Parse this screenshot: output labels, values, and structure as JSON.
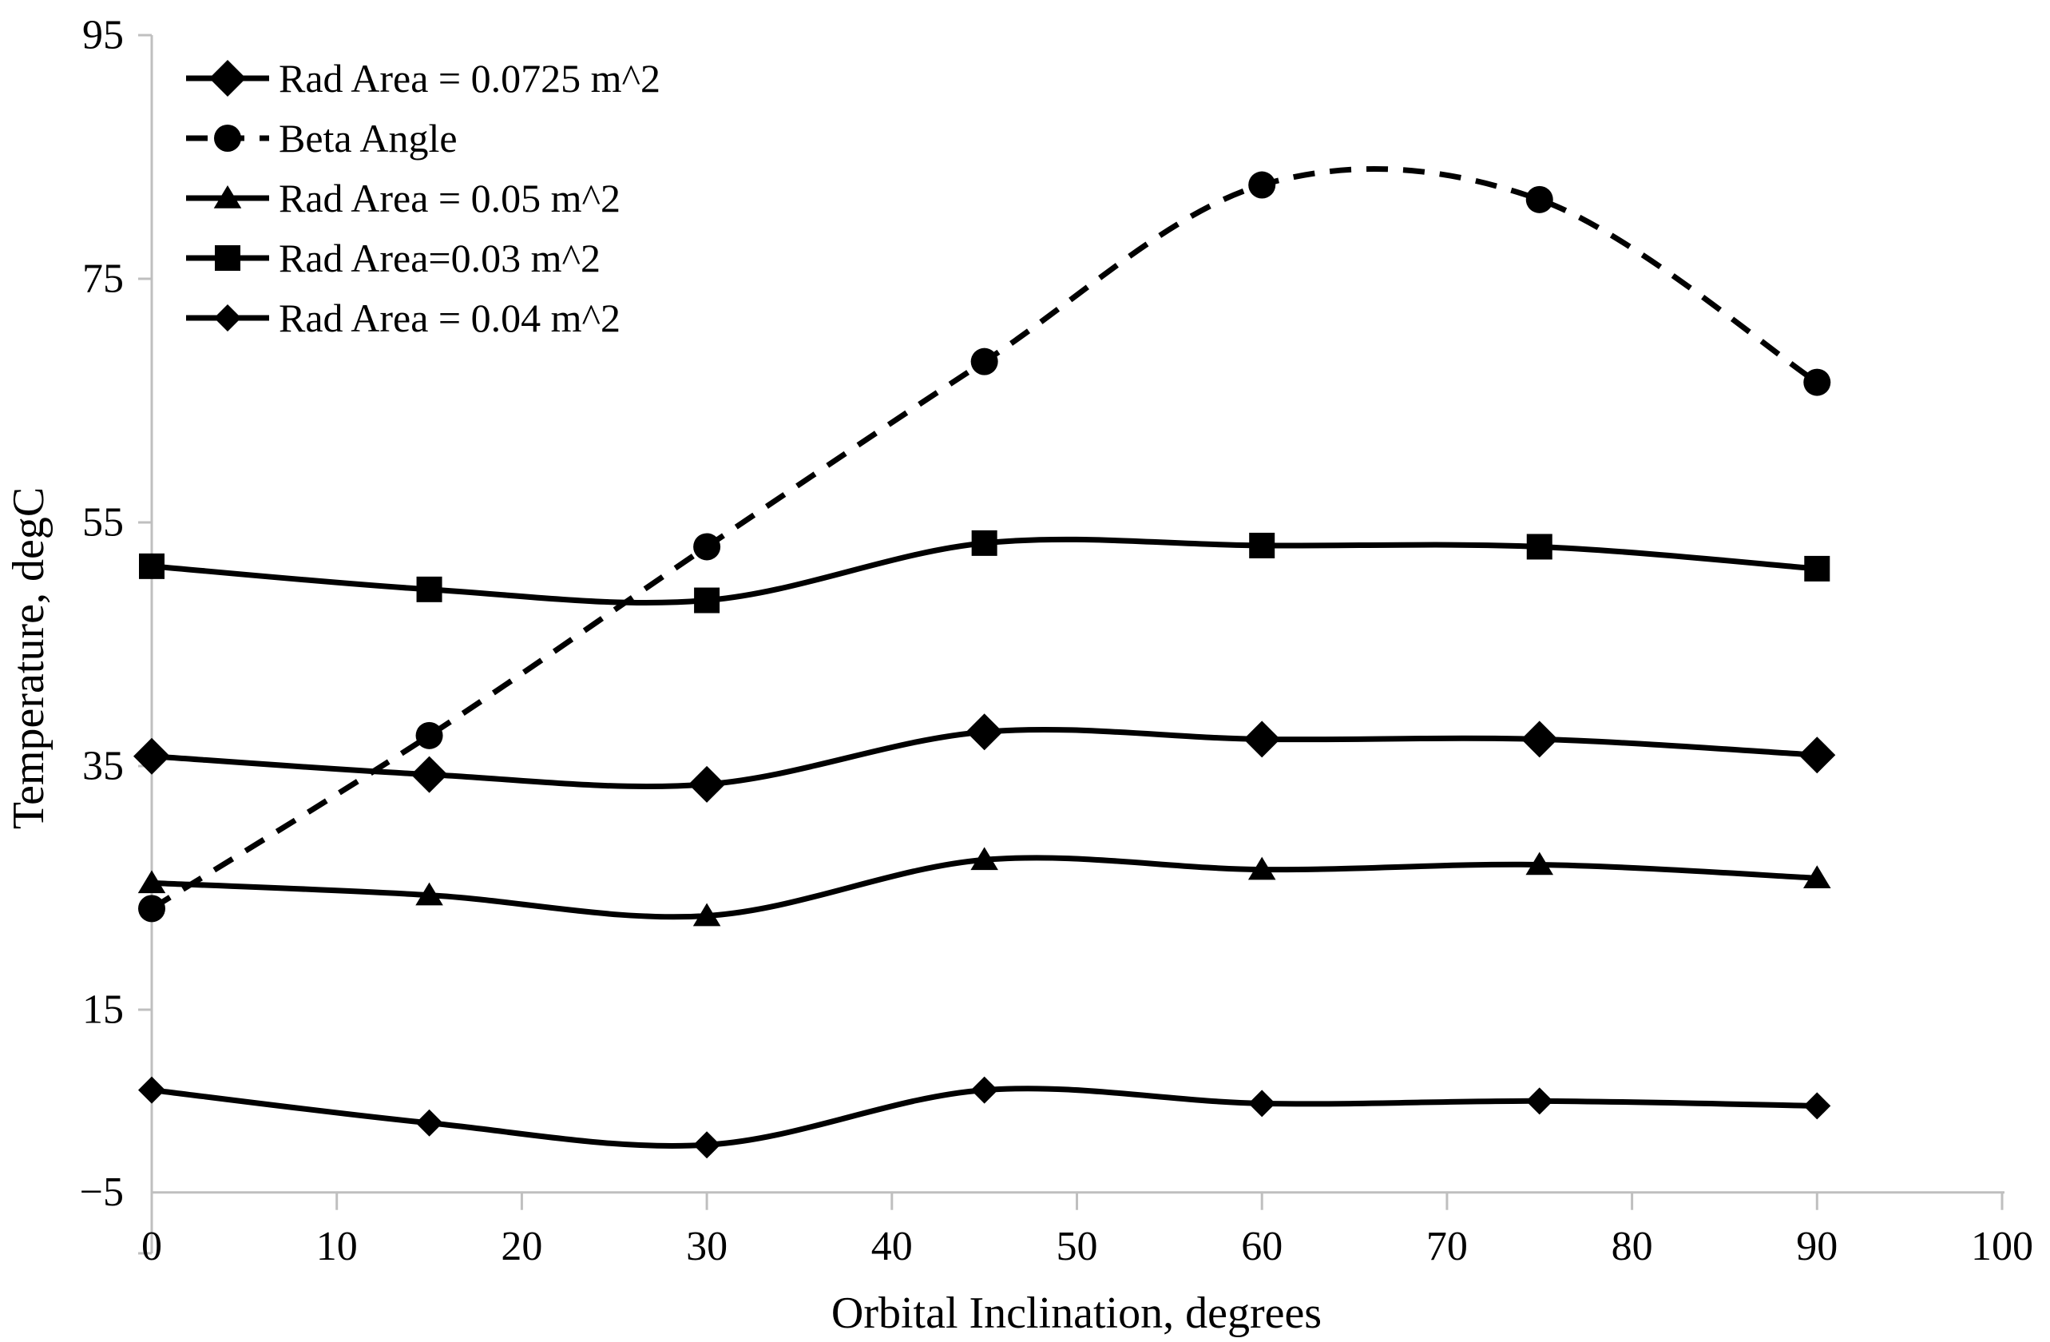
{
  "chart_data": {
    "type": "line",
    "x": [
      0,
      15,
      30,
      45,
      60,
      75,
      90
    ],
    "series": [
      {
        "id": "rad-area-0725",
        "name": "Rad Area = 0.0725 m^2",
        "marker": "diamond",
        "marker_size": 23,
        "dash": false,
        "values": [
          35.8,
          34.3,
          33.5,
          37.8,
          37.2,
          37.2,
          35.9
        ]
      },
      {
        "id": "beta-angle",
        "name": "Beta Angle",
        "marker": "circle",
        "marker_size": 17,
        "dash": true,
        "values": [
          23.3,
          37.5,
          53.0,
          68.2,
          82.7,
          81.5,
          66.5
        ]
      },
      {
        "id": "rad-area-005",
        "name": "Rad Area = 0.05 m^2",
        "marker": "triangle",
        "marker_size": 16,
        "dash": false,
        "values": [
          25.4,
          24.4,
          22.7,
          27.3,
          26.5,
          26.9,
          25.8
        ]
      },
      {
        "id": "rad-area-003",
        "name": "Rad Area=0.03 m^2",
        "marker": "square",
        "marker_size": 16,
        "dash": false,
        "values": [
          51.4,
          49.5,
          48.6,
          53.3,
          53.1,
          53.0,
          51.2
        ]
      },
      {
        "id": "rad-area-004",
        "name": "Rad Area = 0.04 m^2",
        "marker": "diamond",
        "marker_size": 17,
        "dash": false,
        "values": [
          8.4,
          5.7,
          3.9,
          8.4,
          7.3,
          7.5,
          7.1
        ]
      }
    ],
    "title": "",
    "xlabel": "Orbital Inclination, degrees",
    "ylabel": "Temperature, degC",
    "xlim": [
      0,
      100
    ],
    "ylim": [
      -5,
      95
    ],
    "x_ticks": [
      0,
      10,
      20,
      30,
      40,
      50,
      60,
      70,
      80,
      90,
      100
    ],
    "y_ticks": [
      95,
      75,
      55,
      35,
      15,
      -5
    ],
    "y_tick_labels": [
      "95",
      "75",
      "55",
      "35",
      "15",
      "−5"
    ],
    "x_axis_at_value": 0,
    "bottom_y_label_aligned_to_axis": true,
    "grid": false,
    "legend_position": "top-left-inside",
    "colors": {
      "series": "#000000",
      "axis": "#BFBFBF",
      "text": "#000000",
      "background": "#FFFFFF"
    }
  }
}
